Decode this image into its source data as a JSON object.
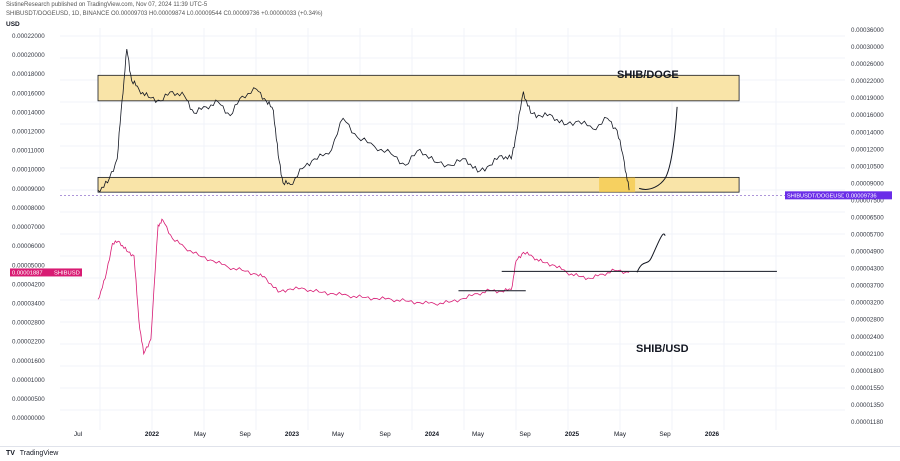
{
  "header": {
    "publisher": "SistineResearch published on TradingView.com, Nov 07, 2024 11:39 UTC-5",
    "symbol_line": "SHIBUSDT/DOGEUSD, 1D, BINANCE  O0.00009703  H0.00009874  L0.00009544  C0.00009736  +0.00000033 (+0.34%)"
  },
  "currency": "USD",
  "footer": {
    "brand_mark": "TV",
    "brand": "TradingView"
  },
  "colors": {
    "doge_series": "#131722",
    "usd_series": "#d81b73",
    "box_fill": "#f9e4a8",
    "box_stroke": "#131722",
    "badge": "#6a2de8",
    "right_scale_text": "#363a45"
  },
  "chart_data": {
    "type": "line",
    "x_axis_ticks": [
      "Jul",
      "2022",
      "May",
      "Sep",
      "2023",
      "May",
      "Sep",
      "2024",
      "May",
      "Sep",
      "2025",
      "May",
      "Sep",
      "2026"
    ],
    "annotations": [
      {
        "label": "SHIB/DOGE",
        "kind": "text"
      },
      {
        "label": "SHIB/USD",
        "kind": "text"
      }
    ],
    "left_axis": {
      "labels": [
        "0.00022000",
        "0.00020000",
        "0.00018000",
        "0.00016000",
        "0.00014000",
        "0.00012000",
        "0.00011000",
        "0.00010000",
        "0.00009000",
        "0.00008000",
        "0.00007000",
        "0.00006000",
        "0.00005000",
        "0.00004200",
        "0.00003400",
        "0.00002800",
        "0.00002200",
        "0.00001600",
        "0.00001000",
        "0.00000500",
        "0.00000000"
      ]
    },
    "right_axis": {
      "labels": [
        "0.00036000",
        "0.00030000",
        "0.00026000",
        "0.00022000",
        "0.00019000",
        "0.00016000",
        "0.00014000",
        "0.00012000",
        "0.00010500",
        "0.00009000",
        "0.00007500",
        "0.00006500",
        "0.00005700",
        "0.00004900",
        "0.00004300",
        "0.00003700",
        "0.00003200",
        "0.00002800",
        "0.00002400",
        "0.00002100",
        "0.00001800",
        "0.00001550",
        "0.00001350",
        "0.00001180"
      ]
    },
    "badges": {
      "left": {
        "value": "0.00001887",
        "name": "SHIBUSD"
      },
      "right": {
        "name": "SHIBUSDT/DOGEUSD",
        "value": "0.00009736"
      }
    },
    "series": [
      {
        "name": "SHIBUSDT/DOGEUSD",
        "values": [
          [
            0,
            0.0001
          ],
          [
            4,
            0.000104
          ],
          [
            8,
            0.000118
          ],
          [
            10,
            0.00016
          ],
          [
            12,
            0.00021
          ],
          [
            14,
            0.000178
          ],
          [
            17,
            0.00017
          ],
          [
            21,
            0.000163
          ],
          [
            26,
            0.00016
          ],
          [
            31,
            0.000168
          ],
          [
            36,
            0.000164
          ],
          [
            40,
            0.00015
          ],
          [
            45,
            0.000155
          ],
          [
            50,
            0.000159
          ],
          [
            55,
            0.000148
          ],
          [
            60,
            0.000164
          ],
          [
            66,
            0.00017
          ],
          [
            70,
            0.00016
          ],
          [
            73,
            0.000152
          ],
          [
            75,
            0.00012
          ],
          [
            77,
            0.000104
          ],
          [
            80,
            0.000103
          ],
          [
            85,
            0.000112
          ],
          [
            90,
            0.000118
          ],
          [
            96,
            0.000121
          ],
          [
            102,
            0.000146
          ],
          [
            108,
            0.000132
          ],
          [
            115,
            0.000126
          ],
          [
            122,
            0.000121
          ],
          [
            128,
            0.000114
          ],
          [
            134,
            0.000124
          ],
          [
            140,
            0.000116
          ],
          [
            147,
            0.000114
          ],
          [
            153,
            0.000118
          ],
          [
            158,
            0.00011
          ],
          [
            163,
            0.000114
          ],
          [
            168,
            0.00012
          ],
          [
            172,
            0.000118
          ],
          [
            174,
            0.000134
          ],
          [
            177,
            0.000168
          ],
          [
            180,
            0.00015
          ],
          [
            184,
            0.000148
          ],
          [
            189,
            0.000148
          ],
          [
            194,
            0.000141
          ],
          [
            200,
            0.000144
          ],
          [
            206,
            0.000138
          ],
          [
            212,
            0.000146
          ],
          [
            216,
            0.000137
          ],
          [
            219,
            0.000116
          ],
          [
            221,
            0.0001
          ]
        ]
      },
      {
        "name": "SHIBUSD",
        "values": [
          [
            0,
            9e-06
          ],
          [
            3,
            1.6e-05
          ],
          [
            6,
            4.2e-05
          ],
          [
            9,
            4.4e-05
          ],
          [
            12,
            3.4e-05
          ],
          [
            15,
            3e-05
          ],
          [
            17,
            5e-06
          ],
          [
            19,
            2e-06
          ],
          [
            22,
            3e-06
          ],
          [
            25,
            7e-05
          ],
          [
            27,
            8e-05
          ],
          [
            31,
            4.8e-05
          ],
          [
            36,
            3.8e-05
          ],
          [
            42,
            3e-05
          ],
          [
            48,
            2.6e-05
          ],
          [
            54,
            2.2e-05
          ],
          [
            60,
            2e-05
          ],
          [
            66,
            1.8e-05
          ],
          [
            70,
            1.6e-05
          ],
          [
            75,
            1.1e-05
          ],
          [
            80,
            1.2e-05
          ],
          [
            86,
            1.2e-05
          ],
          [
            92,
            1.1e-05
          ],
          [
            98,
            1.05e-05
          ],
          [
            104,
            1e-05
          ],
          [
            110,
            9.5e-06
          ],
          [
            116,
            9.2e-06
          ],
          [
            122,
            9e-06
          ],
          [
            128,
            8.6e-06
          ],
          [
            134,
            8.2e-06
          ],
          [
            140,
            8e-06
          ],
          [
            146,
            8.3e-06
          ],
          [
            152,
            9.2e-06
          ],
          [
            158,
            1.05e-05
          ],
          [
            163,
            1.15e-05
          ],
          [
            168,
            1.12e-05
          ],
          [
            172,
            1.18e-05
          ],
          [
            174,
            2.6e-05
          ],
          [
            177,
            3.3e-05
          ],
          [
            181,
            2.9e-05
          ],
          [
            185,
            2.5e-05
          ],
          [
            190,
            2.3e-05
          ],
          [
            195,
            1.9e-05
          ],
          [
            200,
            1.7e-05
          ],
          [
            205,
            1.6e-05
          ],
          [
            210,
            1.8e-05
          ],
          [
            215,
            2e-05
          ],
          [
            221,
            1.9e-05
          ]
        ]
      }
    ]
  }
}
